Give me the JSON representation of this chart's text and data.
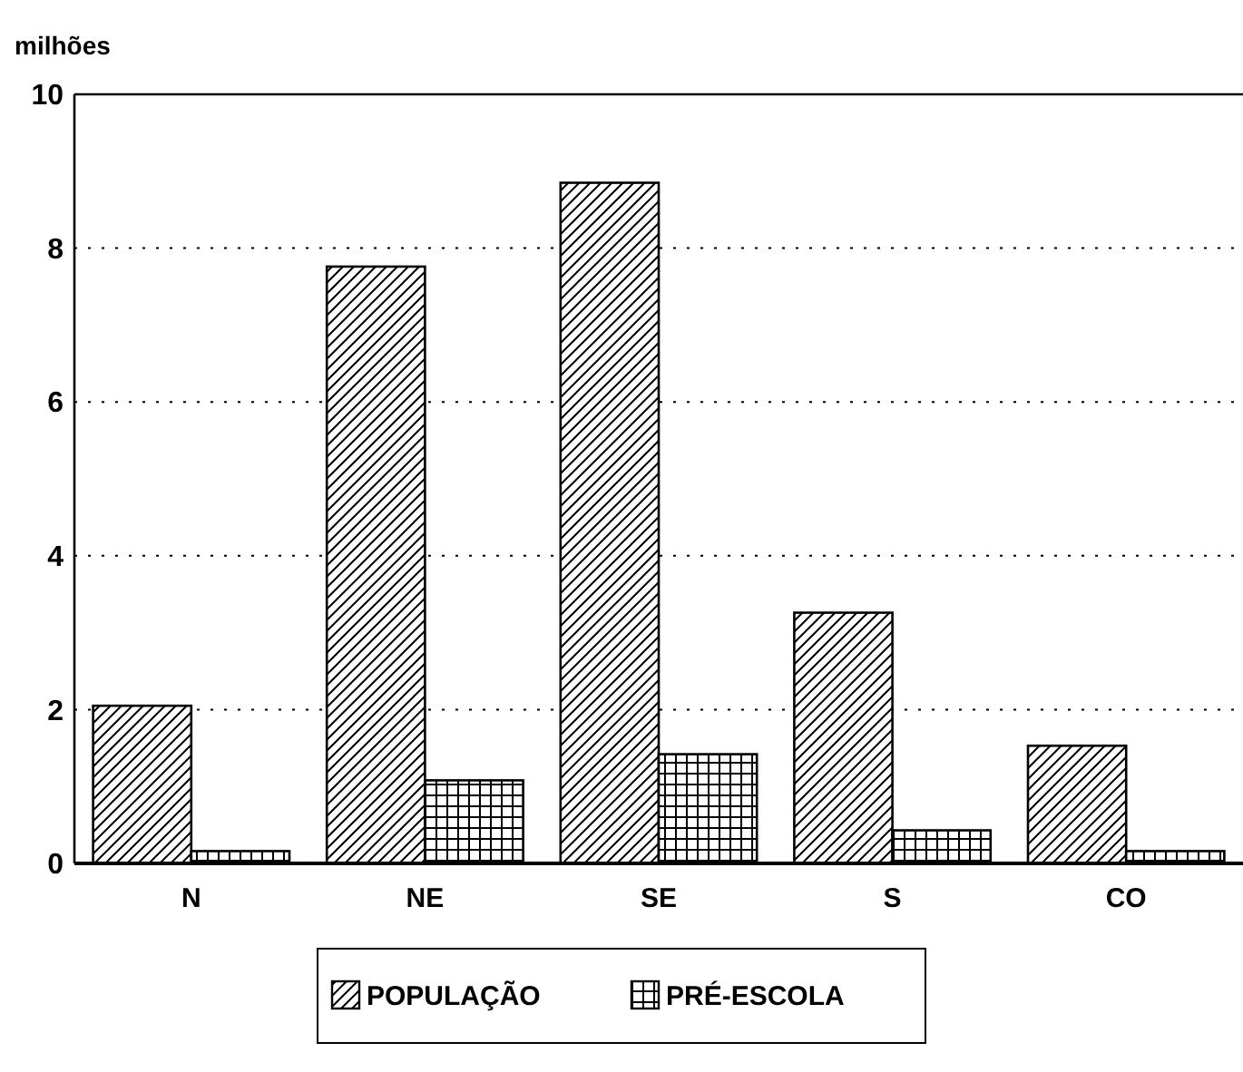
{
  "chart_data": {
    "type": "bar",
    "ylabel": "milhões",
    "categories": [
      "N",
      "NE",
      "SE",
      "S",
      "CO"
    ],
    "series": [
      {
        "name": "POPULAÇÃO",
        "color": "#000000",
        "values": [
          2.05,
          7.76,
          8.85,
          3.26,
          1.53
        ]
      },
      {
        "name": "PRÉ-ESCOLA",
        "color": "#000000",
        "values": [
          0.16,
          1.08,
          1.42,
          0.43,
          0.16
        ]
      }
    ],
    "ylim": [
      0,
      10
    ],
    "yticks": [
      0,
      2,
      4,
      6,
      8,
      10
    ],
    "grid": "y",
    "legend": "bottom"
  }
}
